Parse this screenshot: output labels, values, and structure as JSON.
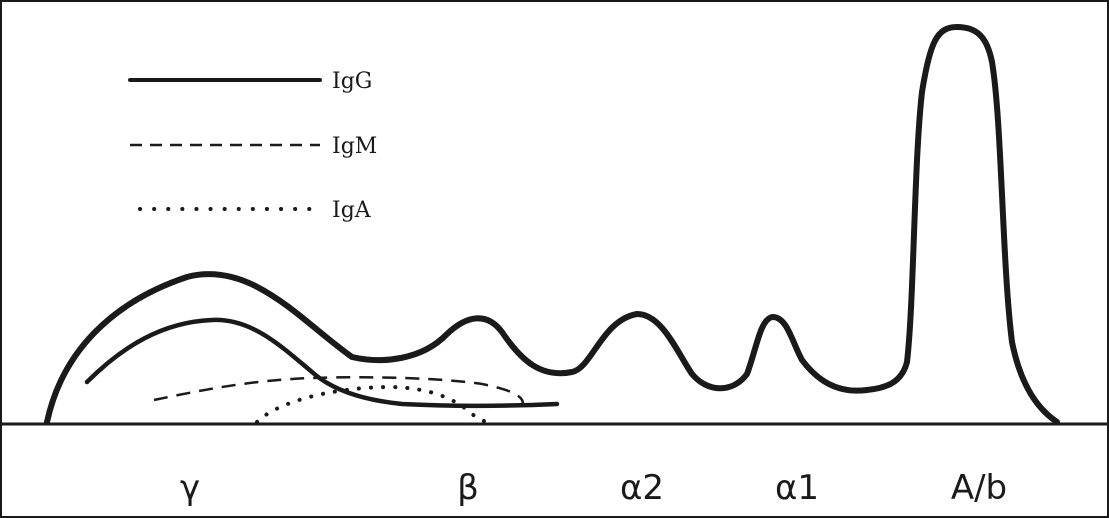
{
  "legend": [
    {
      "label": "IgG",
      "style": "solid"
    },
    {
      "label": "IgM",
      "style": "dashed"
    },
    {
      "label": "IgA",
      "style": "dotted"
    }
  ],
  "fractions": [
    {
      "label": "γ"
    },
    {
      "label": "β"
    },
    {
      "label": "α2"
    },
    {
      "label": "α1"
    },
    {
      "label": "A/b"
    }
  ],
  "colors": {
    "ink": "#1a1a1a",
    "background": "#ffffff"
  }
}
